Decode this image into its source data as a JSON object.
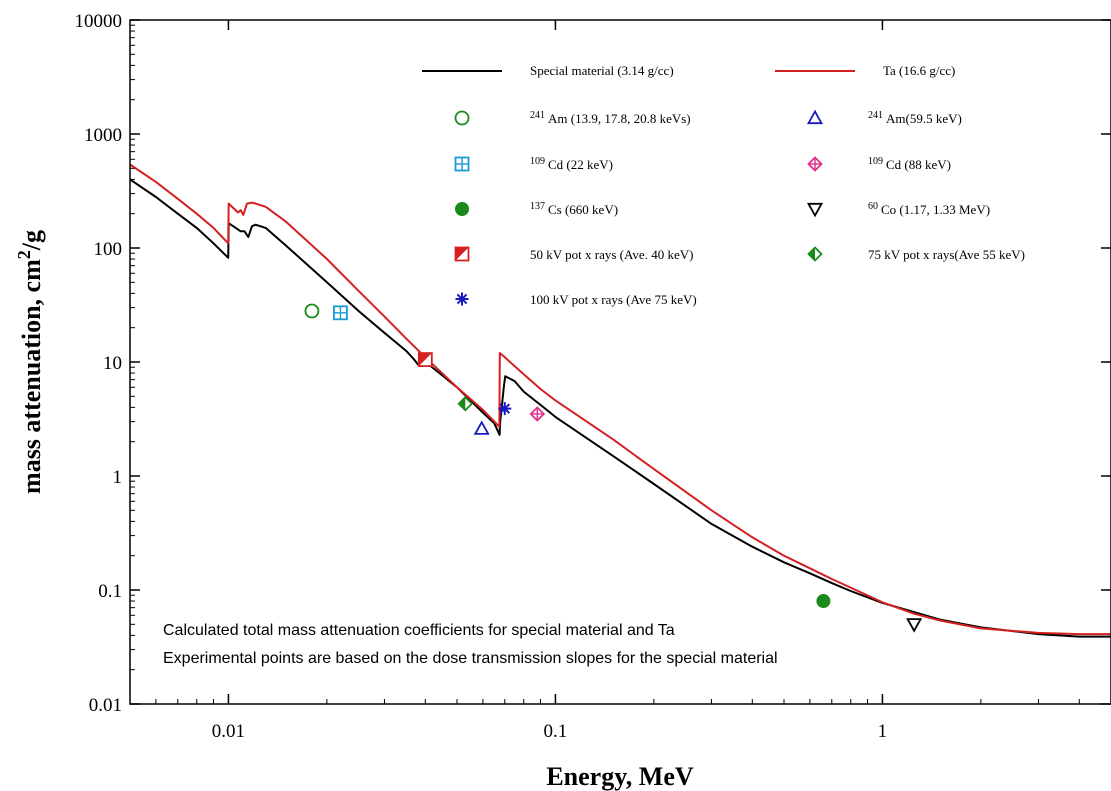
{
  "chart_data": {
    "type": "line",
    "xlabel": "Energy, MeV",
    "ylabel_main": "mass attenuation, cm",
    "ylabel_sup": "2",
    "ylabel_tail": "/g",
    "x_scale": "log",
    "y_scale": "log",
    "xlim": [
      0.005,
      5
    ],
    "ylim": [
      0.01,
      10000
    ],
    "x_ticks": [
      {
        "value": 0.01,
        "label": "0.01"
      },
      {
        "value": 0.1,
        "label": "0.1"
      },
      {
        "value": 1,
        "label": "1"
      }
    ],
    "y_ticks": [
      {
        "value": 0.01,
        "label": "0.01"
      },
      {
        "value": 0.1,
        "label": "0.1"
      },
      {
        "value": 1,
        "label": "1"
      },
      {
        "value": 10,
        "label": "10"
      },
      {
        "value": 100,
        "label": "100"
      },
      {
        "value": 1000,
        "label": "1000"
      },
      {
        "value": 10000,
        "label": "10000"
      }
    ],
    "grid": false,
    "legend_position": "top-right",
    "annotations": [
      "Calculated total mass attenuation coefficients for special material and Ta",
      "Experimental points are based on the dose transmission slopes for the special material"
    ],
    "series": [
      {
        "name": "Special material (3.14 g/cc)",
        "kind": "line",
        "color": "#000000",
        "points": [
          [
            0.005,
            400
          ],
          [
            0.006,
            280
          ],
          [
            0.007,
            200
          ],
          [
            0.008,
            150
          ],
          [
            0.009,
            110
          ],
          [
            0.00998,
            82
          ],
          [
            0.01002,
            165
          ],
          [
            0.0109,
            140
          ],
          [
            0.0112,
            140
          ],
          [
            0.0115,
            125
          ],
          [
            0.0118,
            155
          ],
          [
            0.0121,
            160
          ],
          [
            0.013,
            150
          ],
          [
            0.015,
            105
          ],
          [
            0.02,
            50
          ],
          [
            0.025,
            28
          ],
          [
            0.03,
            18
          ],
          [
            0.035,
            12.5
          ],
          [
            0.037,
            10.5
          ],
          [
            0.038,
            9.5
          ],
          [
            0.039,
            10.5
          ],
          [
            0.04,
            10
          ],
          [
            0.043,
            8.5
          ],
          [
            0.05,
            6
          ],
          [
            0.06,
            3.6
          ],
          [
            0.065,
            2.9
          ],
          [
            0.0675,
            2.3
          ],
          [
            0.0678,
            3
          ],
          [
            0.0695,
            6
          ],
          [
            0.0702,
            7.5
          ],
          [
            0.075,
            6.8
          ],
          [
            0.08,
            5.5
          ],
          [
            0.09,
            4.2
          ],
          [
            0.1,
            3.3
          ],
          [
            0.15,
            1.5
          ],
          [
            0.2,
            0.85
          ],
          [
            0.3,
            0.38
          ],
          [
            0.4,
            0.24
          ],
          [
            0.5,
            0.175
          ],
          [
            0.6,
            0.14
          ],
          [
            0.7,
            0.115
          ],
          [
            0.8,
            0.098
          ],
          [
            1,
            0.077
          ],
          [
            1.25,
            0.064
          ],
          [
            1.5,
            0.055
          ],
          [
            2,
            0.047
          ],
          [
            3,
            0.041
          ],
          [
            4,
            0.039
          ],
          [
            5,
            0.039
          ]
        ]
      },
      {
        "name": "Ta (16.6 g/cc)",
        "kind": "line",
        "color": "#d42020",
        "points": [
          [
            0.005,
            540
          ],
          [
            0.006,
            380
          ],
          [
            0.007,
            270
          ],
          [
            0.008,
            200
          ],
          [
            0.009,
            150
          ],
          [
            0.00998,
            110
          ],
          [
            0.01002,
            245
          ],
          [
            0.0107,
            205
          ],
          [
            0.0109,
            215
          ],
          [
            0.0111,
            195
          ],
          [
            0.0114,
            245
          ],
          [
            0.0118,
            250
          ],
          [
            0.0121,
            245
          ],
          [
            0.013,
            230
          ],
          [
            0.015,
            170
          ],
          [
            0.02,
            80
          ],
          [
            0.025,
            42
          ],
          [
            0.03,
            25
          ],
          [
            0.035,
            16
          ],
          [
            0.04,
            11
          ],
          [
            0.05,
            6
          ],
          [
            0.06,
            3.8
          ],
          [
            0.065,
            3
          ],
          [
            0.0674,
            2.7
          ],
          [
            0.0676,
            12
          ],
          [
            0.07,
            11
          ],
          [
            0.08,
            7.8
          ],
          [
            0.09,
            5.8
          ],
          [
            0.1,
            4.6
          ],
          [
            0.15,
            2.1
          ],
          [
            0.2,
            1.15
          ],
          [
            0.3,
            0.5
          ],
          [
            0.4,
            0.29
          ],
          [
            0.5,
            0.2
          ],
          [
            0.6,
            0.155
          ],
          [
            0.7,
            0.125
          ],
          [
            0.8,
            0.105
          ],
          [
            1,
            0.078
          ],
          [
            1.25,
            0.062
          ],
          [
            1.5,
            0.054
          ],
          [
            2,
            0.046
          ],
          [
            3,
            0.042
          ],
          [
            4,
            0.041
          ],
          [
            5,
            0.041
          ]
        ]
      },
      {
        "name": "Am (13.9, 17.8, 20.8 keVs)",
        "iso": "241",
        "kind": "marker",
        "marker": "circle-open",
        "color": "#1a8a1a",
        "points": [
          [
            0.018,
            28
          ]
        ]
      },
      {
        "name": "Am(59.5 keV)",
        "iso": "241",
        "kind": "marker",
        "marker": "triangle-open",
        "color": "#1a1ac0",
        "points": [
          [
            0.0595,
            2.6
          ]
        ]
      },
      {
        "name": "Cd (22 keV)",
        "iso": "109",
        "kind": "marker",
        "marker": "square-cross",
        "color": "#1a9ad6",
        "points": [
          [
            0.022,
            27
          ]
        ]
      },
      {
        "name": "Cd (88 keV)",
        "iso": "109",
        "kind": "marker",
        "marker": "diamond-cross",
        "color": "#e0308a",
        "points": [
          [
            0.088,
            3.5
          ]
        ]
      },
      {
        "name": "Cs (660 keV)",
        "iso": "137",
        "kind": "marker",
        "marker": "circle-filled",
        "color": "#1a8a1a",
        "points": [
          [
            0.66,
            0.08
          ]
        ]
      },
      {
        "name": "Co (1.17, 1.33 MeV)",
        "iso": "60",
        "kind": "marker",
        "marker": "triangle-down-open",
        "color": "#000000",
        "points": [
          [
            1.25,
            0.05
          ]
        ]
      },
      {
        "name": "50 kV pot x rays (Ave. 40 keV)",
        "iso": "",
        "kind": "marker",
        "marker": "square-half",
        "color": "#d42020",
        "points": [
          [
            0.04,
            10.5
          ]
        ]
      },
      {
        "name": "75 kV pot x rays(Ave 55 keV)",
        "iso": "",
        "kind": "marker",
        "marker": "diamond-half",
        "color": "#1a8a1a",
        "points": [
          [
            0.053,
            4.3
          ]
        ]
      },
      {
        "name": "100 kV pot x rays (Ave 75 keV)",
        "iso": "",
        "kind": "marker",
        "marker": "asterisk",
        "color": "#1a1ac0",
        "points": [
          [
            0.07,
            3.9
          ]
        ]
      }
    ]
  }
}
